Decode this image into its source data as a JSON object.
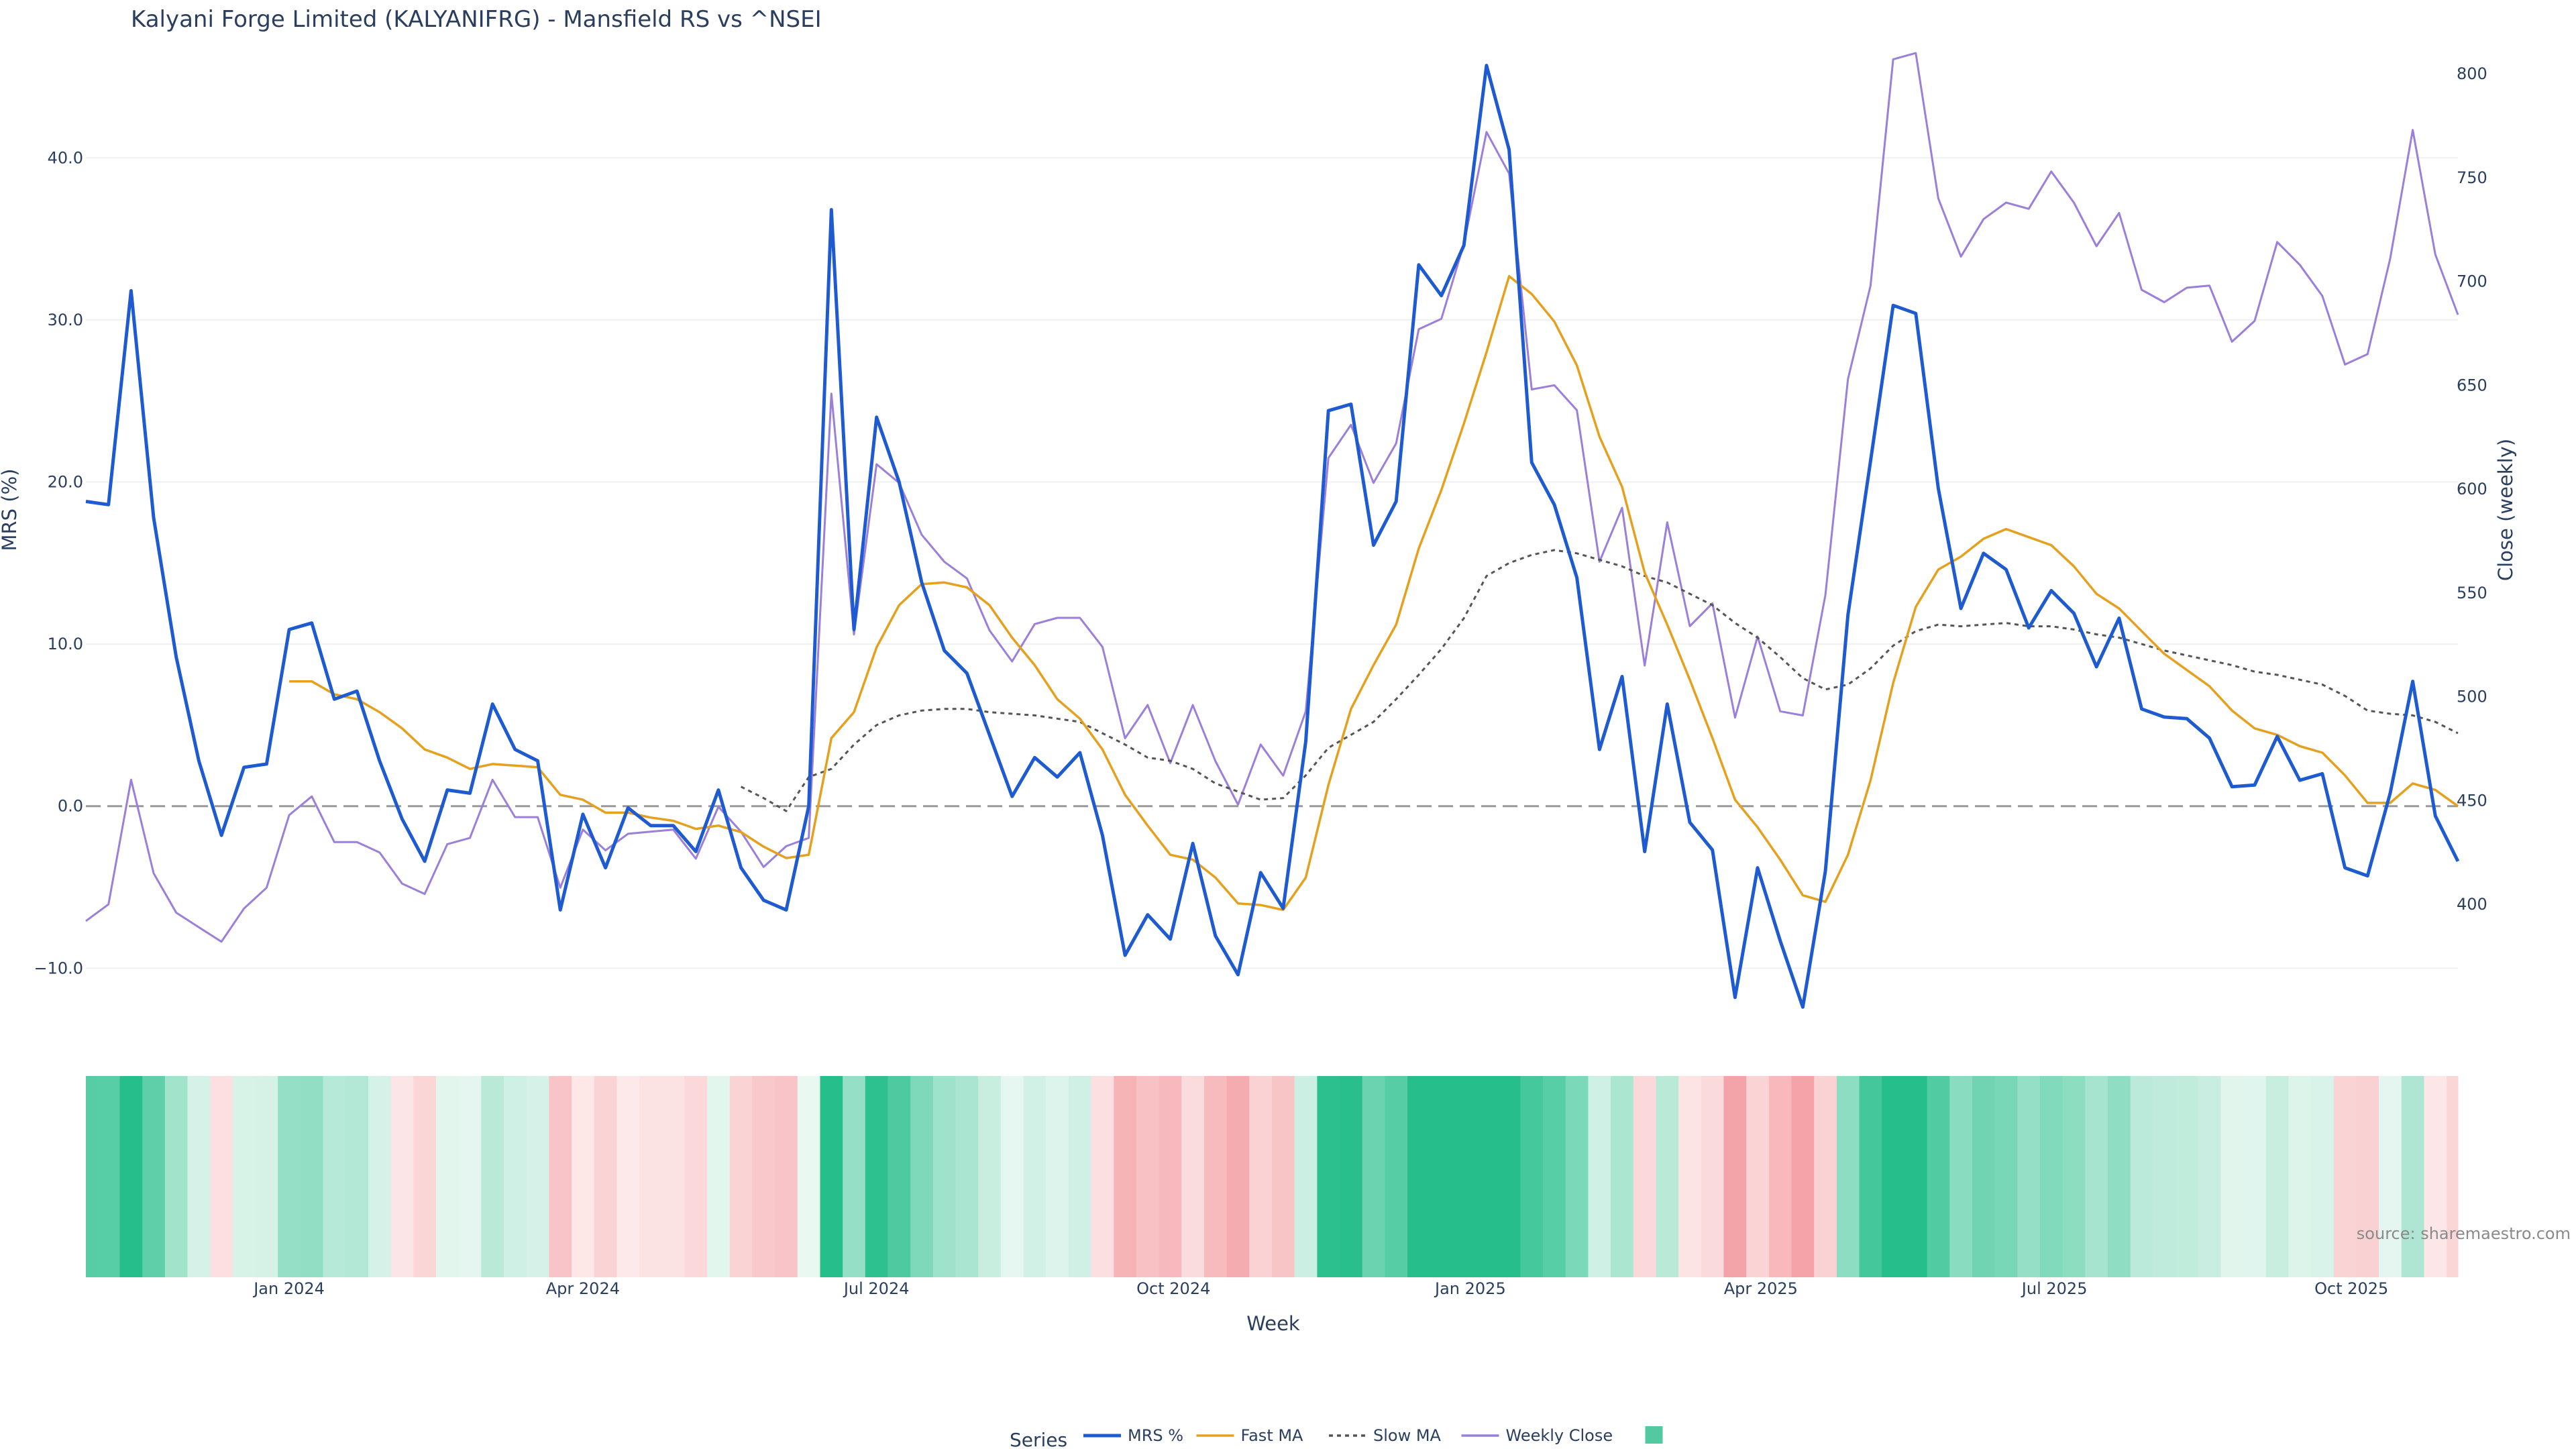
{
  "title": "Kalyani Forge Limited (KALYANIFRG) - Mansfield RS vs ^NSEI",
  "source": "source: sharemaestro.com",
  "legend_title": "Series",
  "colors": {
    "mrs": "#1f5bd0",
    "fast_ma": "#e5a11e",
    "slow_ma": "#555555",
    "close": "#9b7fdb",
    "zero_line": "#999999",
    "legend_swatch": "#52c9a0",
    "pos_heat": "#26bf8c",
    "neg_heat": "#f4a3a8"
  },
  "chart_data": {
    "type": "line",
    "title": "Kalyani Forge Limited (KALYANIFRG) - Mansfield RS vs ^NSEI",
    "xlabel": "Week",
    "ylabel": "MRS (%)",
    "y2label": "Close (weekly)",
    "x_start": "2023-10-30",
    "x_step_days": 7,
    "x_range": [
      "2023-10-30",
      "2025-11-03"
    ],
    "x_ticks": [
      {
        "date": "2024-01-01",
        "label": "Jan 2024"
      },
      {
        "date": "2024-04-01",
        "label": "Apr 2024"
      },
      {
        "date": "2024-07-01",
        "label": "Jul 2024"
      },
      {
        "date": "2024-10-01",
        "label": "Oct 2024"
      },
      {
        "date": "2025-01-01",
        "label": "Jan 2025"
      },
      {
        "date": "2025-04-01",
        "label": "Apr 2025"
      },
      {
        "date": "2025-07-01",
        "label": "Jul 2025"
      },
      {
        "date": "2025-10-01",
        "label": "Oct 2025"
      }
    ],
    "y_ticks": [
      {
        "value": -10,
        "label": "−10.0"
      },
      {
        "value": 0,
        "label": "0.0"
      },
      {
        "value": 10,
        "label": "10.0"
      },
      {
        "value": 20,
        "label": "20.0"
      },
      {
        "value": 30,
        "label": "30.0"
      },
      {
        "value": 40,
        "label": "40.0"
      }
    ],
    "y2_ticks": [
      {
        "value": 400,
        "label": "400"
      },
      {
        "value": 450,
        "label": "450"
      },
      {
        "value": 500,
        "label": "500"
      },
      {
        "value": 550,
        "label": "550"
      },
      {
        "value": 600,
        "label": "600"
      },
      {
        "value": 650,
        "label": "650"
      },
      {
        "value": 700,
        "label": "700"
      },
      {
        "value": 750,
        "label": "750"
      },
      {
        "value": 800,
        "label": "800"
      }
    ],
    "ylim": [
      -14,
      48
    ],
    "y2lim": [
      338,
      822
    ],
    "zero_line": 0,
    "series": [
      {
        "name": "MRS %",
        "key": "mrs",
        "axis": "y",
        "values": [
          18.8,
          18.6,
          31.8,
          17.8,
          9.2,
          2.8,
          -1.8,
          2.4,
          2.6,
          10.9,
          11.3,
          6.6,
          7.1,
          2.8,
          -0.8,
          -3.4,
          1.0,
          0.8,
          6.3,
          3.5,
          2.8,
          -6.4,
          -0.5,
          -3.8,
          -0.1,
          -1.2,
          -1.2,
          -2.8,
          1.0,
          -3.8,
          -5.8,
          -6.4,
          0.0,
          36.8,
          10.9,
          24.0,
          20.0,
          13.8,
          9.6,
          8.2,
          4.4,
          0.6,
          3.0,
          1.8,
          3.3,
          -1.8,
          -9.2,
          -6.7,
          -8.2,
          -2.3,
          -8.0,
          -10.4,
          -4.1,
          -6.3,
          4.0,
          24.4,
          24.8,
          16.1,
          18.8,
          33.4,
          31.5,
          34.6,
          45.7,
          40.5,
          21.2,
          18.6,
          14.1,
          3.5,
          8.0,
          -2.8,
          6.3,
          -1.0,
          -2.7,
          -11.8,
          -3.8,
          -8.3,
          -12.4,
          -4.0,
          11.8,
          21.3,
          30.9,
          30.4,
          19.6,
          12.2,
          15.6,
          14.6,
          11.0,
          13.3,
          11.9,
          8.6,
          11.6,
          6.0,
          5.5,
          5.4,
          4.2,
          1.2,
          1.3,
          4.3,
          1.6,
          2.0,
          -3.8,
          -4.3,
          0.8,
          7.7,
          -0.6,
          -3.4
        ]
      },
      {
        "name": "Fast MA",
        "key": "fast_ma",
        "axis": "y",
        "values": [
          null,
          null,
          null,
          null,
          null,
          null,
          null,
          null,
          null,
          7.7,
          7.7,
          6.9,
          6.6,
          5.8,
          4.8,
          3.5,
          3.0,
          2.3,
          2.6,
          2.5,
          2.4,
          0.7,
          0.4,
          -0.4,
          -0.4,
          -0.7,
          -0.9,
          -1.4,
          -1.2,
          -1.6,
          -2.5,
          -3.2,
          -3.0,
          4.2,
          5.8,
          9.8,
          12.4,
          13.7,
          13.8,
          13.5,
          12.4,
          10.4,
          8.7,
          6.6,
          5.4,
          3.5,
          0.7,
          -1.2,
          -3.0,
          -3.3,
          -4.4,
          -6.0,
          -6.1,
          -6.4,
          -4.4,
          1.3,
          6.0,
          8.7,
          11.2,
          15.9,
          19.5,
          23.6,
          28.0,
          32.7,
          31.6,
          29.9,
          27.2,
          22.8,
          19.7,
          14.4,
          11.2,
          7.8,
          4.2,
          0.4,
          -1.3,
          -3.3,
          -5.5,
          -5.9,
          -3.0,
          1.6,
          7.6,
          12.3,
          14.6,
          15.4,
          16.5,
          17.1,
          16.6,
          16.1,
          14.8,
          13.1,
          12.2,
          10.8,
          9.4,
          8.4,
          7.4,
          5.9,
          4.8,
          4.4,
          3.7,
          3.3,
          1.9,
          0.2,
          0.2,
          1.4,
          1.0,
          0.0
        ]
      },
      {
        "name": "Slow MA",
        "key": "slow_ma",
        "axis": "y",
        "values": [
          null,
          null,
          null,
          null,
          null,
          null,
          null,
          null,
          null,
          null,
          null,
          null,
          null,
          null,
          null,
          null,
          null,
          null,
          null,
          null,
          null,
          null,
          null,
          null,
          null,
          null,
          null,
          null,
          null,
          1.2,
          0.5,
          -0.3,
          1.8,
          2.3,
          3.8,
          5.0,
          5.6,
          5.9,
          6.0,
          6.0,
          5.8,
          5.7,
          5.6,
          5.4,
          5.2,
          4.5,
          3.8,
          3.0,
          2.8,
          2.3,
          1.4,
          0.9,
          0.4,
          0.5,
          1.9,
          3.6,
          4.4,
          5.2,
          6.6,
          8.1,
          9.7,
          11.6,
          14.2,
          15.0,
          15.5,
          15.8,
          15.6,
          15.2,
          14.8,
          14.2,
          13.8,
          13.1,
          12.4,
          11.3,
          10.4,
          9.2,
          7.9,
          7.2,
          7.5,
          8.5,
          9.9,
          10.8,
          11.2,
          11.1,
          11.2,
          11.3,
          11.1,
          11.1,
          10.9,
          10.6,
          10.4,
          10.0,
          9.6,
          9.3,
          9.0,
          8.7,
          8.3,
          8.1,
          7.8,
          7.5,
          6.8,
          5.9,
          5.7,
          5.6,
          5.2,
          4.5
        ]
      },
      {
        "name": "Weekly Close",
        "key": "close",
        "axis": "y2",
        "values": [
          392,
          400,
          460,
          415,
          396,
          389,
          382,
          398,
          408,
          443,
          452,
          430,
          430,
          425,
          410,
          405,
          429,
          432,
          460,
          442,
          442,
          408,
          436,
          426,
          434,
          435,
          436,
          422,
          447,
          435,
          418,
          428,
          432,
          646,
          530,
          612,
          603,
          578,
          565,
          557,
          532,
          517,
          535,
          538,
          538,
          524,
          480,
          496,
          468,
          496,
          469,
          448,
          477,
          462,
          493,
          615,
          631,
          603,
          622,
          677,
          682,
          718,
          772,
          752,
          648,
          650,
          638,
          565,
          591,
          515,
          584,
          534,
          545,
          490,
          529,
          493,
          491,
          549,
          653,
          698,
          807,
          810,
          740,
          712,
          730,
          738,
          735,
          753,
          738,
          717,
          733,
          696,
          690,
          697,
          698,
          671,
          681,
          719,
          708,
          693,
          660,
          665,
          711,
          773,
          713,
          684
        ]
      }
    ],
    "heat_strip": {
      "value_source": "MRS %",
      "colors": "green for positive MRS, red for negative MRS, intensity by magnitude"
    },
    "legend": {
      "title": "Series",
      "placement": "bottom-center",
      "entries": [
        "MRS %",
        "Fast MA",
        "Slow MA",
        "Weekly Close",
        ""
      ]
    }
  }
}
